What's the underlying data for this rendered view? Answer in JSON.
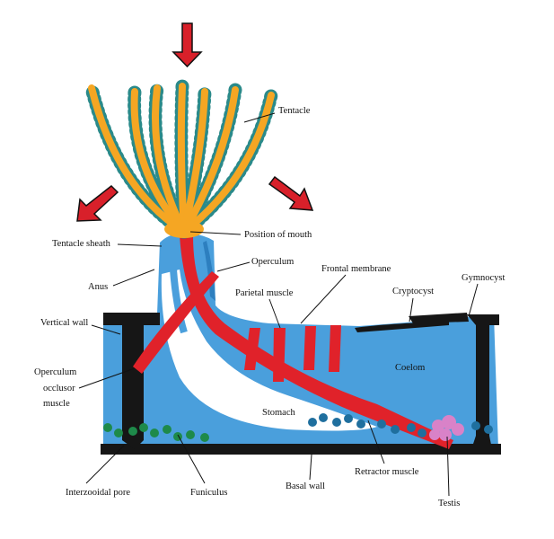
{
  "labels": {
    "tentacle": "Tentacle",
    "tentacle_sheath": "Tentacle sheath",
    "position_of_mouth": "Position of mouth",
    "anus": "Anus",
    "operculum": "Operculum",
    "frontal_membrane": "Frontal membrane",
    "gymnocyst": "Gymnocyst",
    "parietal_muscle": "Parietal muscle",
    "cryptocyst": "Cryptocyst",
    "vertical_wall": "Vertical wall",
    "coelom": "Coelom",
    "operculum_occlusor_muscle": [
      "Operculum",
      "occlusor",
      "muscle"
    ],
    "stomach": "Stomach",
    "interzooidal_pore": "Interzooidal pore",
    "funiculus": "Funiculus",
    "basal_wall": "Basal wall",
    "retractor_muscle": "Retractor muscle",
    "testis": "Testis"
  }
}
